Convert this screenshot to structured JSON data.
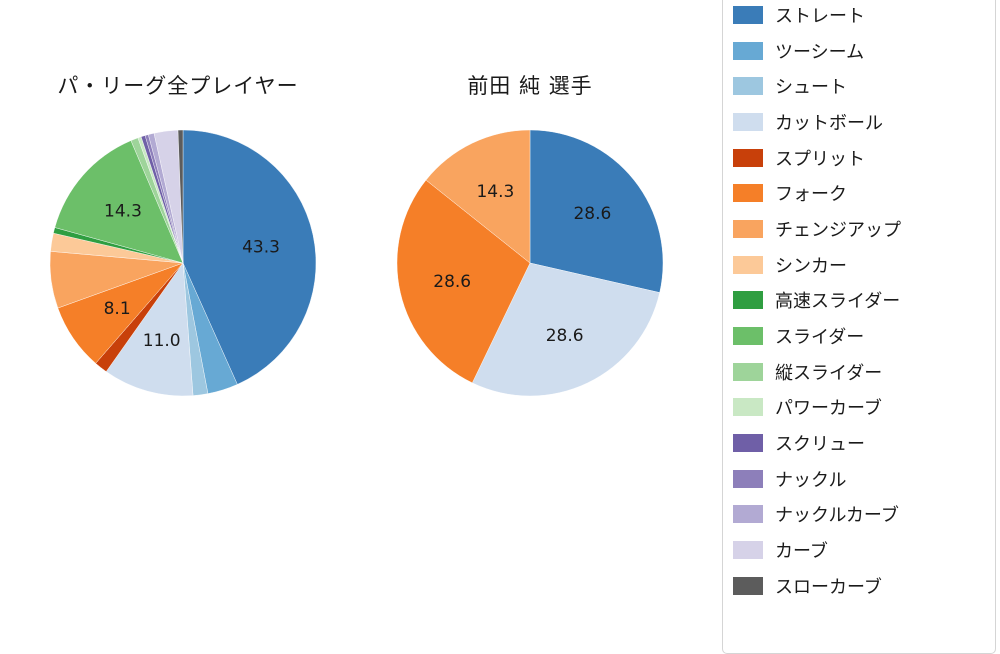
{
  "accent_colors": {
    "background": "#ffffff",
    "text": "#1a1a1a",
    "legend_border": "#d5d5d5"
  },
  "legend": {
    "position": "right",
    "items": [
      {
        "label": "ストレート",
        "color": "#3a7cb8"
      },
      {
        "label": "ツーシーム",
        "color": "#67a9d4"
      },
      {
        "label": "シュート",
        "color": "#9dc7e0"
      },
      {
        "label": "カットボール",
        "color": "#cfddee"
      },
      {
        "label": "スプリット",
        "color": "#c8400a"
      },
      {
        "label": "フォーク",
        "color": "#f57f28"
      },
      {
        "label": "チェンジアップ",
        "color": "#f9a45f"
      },
      {
        "label": "シンカー",
        "color": "#fcc998"
      },
      {
        "label": "高速スライダー",
        "color": "#2f9e41"
      },
      {
        "label": "スライダー",
        "color": "#6cbf69"
      },
      {
        "label": "縦スライダー",
        "color": "#9ed49a"
      },
      {
        "label": "パワーカーブ",
        "color": "#c9e8c4"
      },
      {
        "label": "スクリュー",
        "color": "#6f5fa7"
      },
      {
        "label": "ナックル",
        "color": "#8d7fba"
      },
      {
        "label": "ナックルカーブ",
        "color": "#b2aad3"
      },
      {
        "label": "カーブ",
        "color": "#d6d2e8"
      },
      {
        "label": "スローカーブ",
        "color": "#5c5c5c"
      }
    ]
  },
  "chart_data": [
    {
      "type": "pie",
      "title": "パ・リーグ全プレイヤー",
      "unit": "%",
      "start_angle_deg": 90,
      "direction": "clockwise",
      "slices": [
        {
          "label": "ストレート",
          "value": 43.3,
          "pct_label": "43.3"
        },
        {
          "label": "ツーシーム",
          "value": 3.7
        },
        {
          "label": "シュート",
          "value": 1.8
        },
        {
          "label": "カットボール",
          "value": 11.0,
          "pct_label": "11.0"
        },
        {
          "label": "スプリット",
          "value": 1.6
        },
        {
          "label": "フォーク",
          "value": 8.1,
          "pct_label": "8.1"
        },
        {
          "label": "チェンジアップ",
          "value": 6.9
        },
        {
          "label": "シンカー",
          "value": 2.2
        },
        {
          "label": "高速スライダー",
          "value": 0.7
        },
        {
          "label": "スライダー",
          "value": 14.3,
          "pct_label": "14.3"
        },
        {
          "label": "縦スライダー",
          "value": 0.9
        },
        {
          "label": "パワーカーブ",
          "value": 0.4
        },
        {
          "label": "スクリュー",
          "value": 0.5
        },
        {
          "label": "ナックル",
          "value": 0.4
        },
        {
          "label": "ナックルカーブ",
          "value": 0.7
        },
        {
          "label": "カーブ",
          "value": 2.9
        },
        {
          "label": "スローカーブ",
          "value": 0.6
        }
      ]
    },
    {
      "type": "pie",
      "title": "前田 純  選手",
      "unit": "%",
      "start_angle_deg": 90,
      "direction": "clockwise",
      "slices": [
        {
          "label": "ストレート",
          "value": 28.6,
          "pct_label": "28.6"
        },
        {
          "label": "カットボール",
          "value": 28.6,
          "pct_label": "28.6"
        },
        {
          "label": "フォーク",
          "value": 28.6,
          "pct_label": "28.6"
        },
        {
          "label": "チェンジアップ",
          "value": 14.3,
          "pct_label": "14.3"
        }
      ]
    }
  ]
}
